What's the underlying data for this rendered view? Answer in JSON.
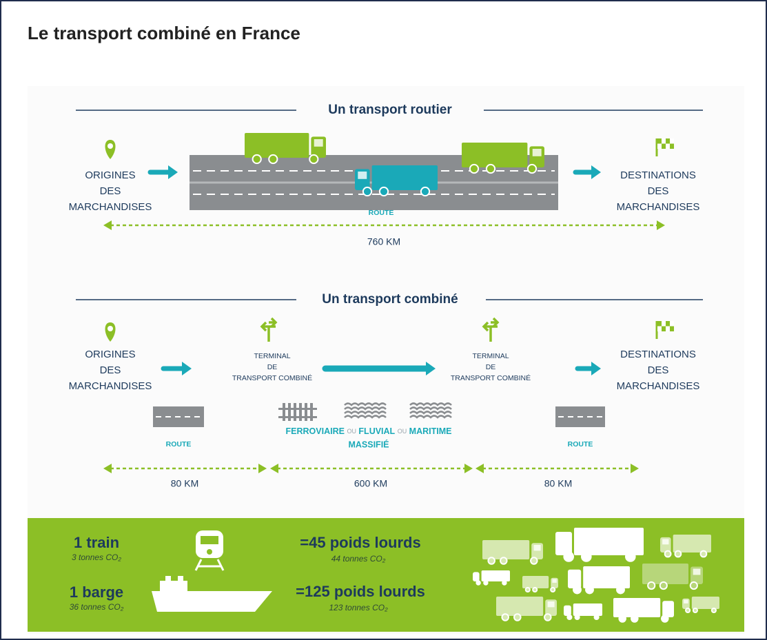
{
  "title": "Le transport combiné en France",
  "road_transport": {
    "heading": "Un transport routier",
    "origin": [
      "ORIGINES",
      "DES",
      "MARCHANDISES"
    ],
    "destination": [
      "DESTINATIONS",
      "DES",
      "MARCHANDISES"
    ],
    "route_label": "ROUTE",
    "distance": "760 KM"
  },
  "combined_transport": {
    "heading": "Un transport combiné",
    "origin": [
      "ORIGINES",
      "DES",
      "MARCHANDISES"
    ],
    "terminals": [
      [
        "TERMINAL",
        "DE",
        "TRANSPORT COMBINÉ"
      ],
      [
        "TERMINAL",
        "DE",
        "TRANSPORT COMBINÉ"
      ]
    ],
    "destination": [
      "DESTINATIONS",
      "DES",
      "MARCHANDISES"
    ],
    "route_labels": [
      "ROUTE",
      "ROUTE"
    ],
    "modes": {
      "rail": "FERROVIAIRE",
      "or_1": "OU",
      "river": "FLUVIAL",
      "or_2": "OU",
      "sea": "MARITIME",
      "mass": "MASSIFIÉ"
    },
    "distances": [
      "80 KM",
      "600 KM",
      "80 KM"
    ]
  },
  "comparison": {
    "train": {
      "label": "1 train",
      "co2": "3 tonnes CO₂"
    },
    "train_equivalent": {
      "label": "=45 poids lourds",
      "co2": "44 tonnes CO₂"
    },
    "barge": {
      "label": "1 barge",
      "co2": "36 tonnes CO₂"
    },
    "barge_equivalent": {
      "label": "=125 poids lourds",
      "co2": "123 tonnes CO₂"
    }
  }
}
